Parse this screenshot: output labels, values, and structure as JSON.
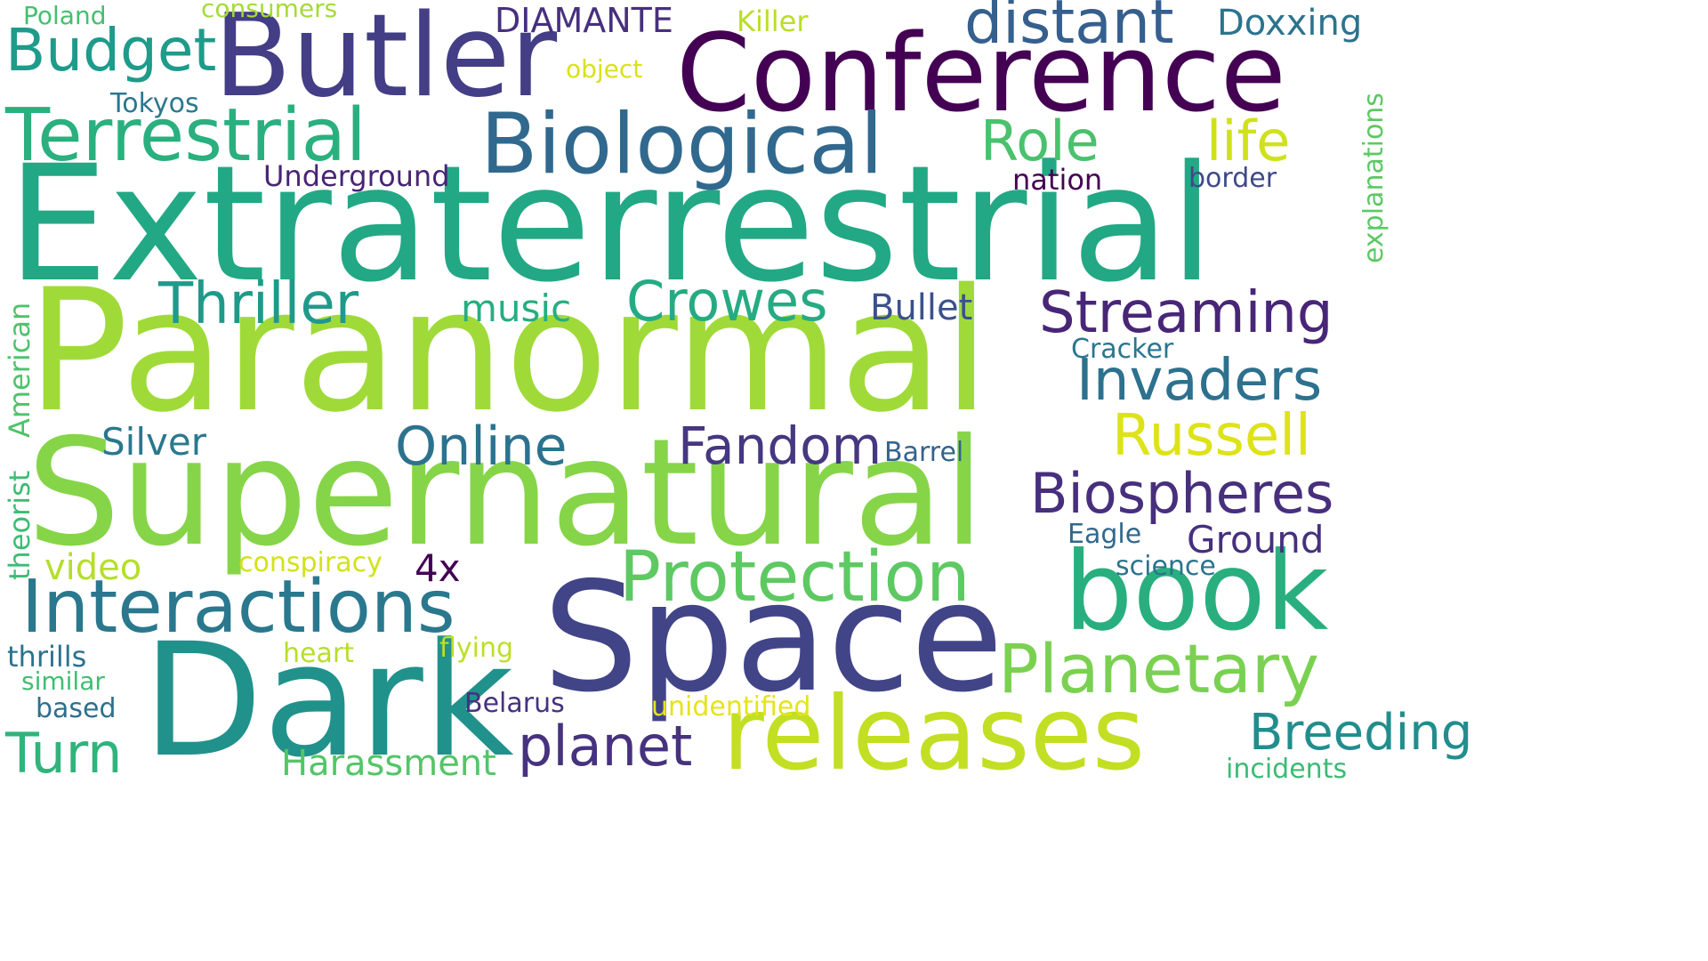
{
  "words": [
    {
      "text": "Extraterrestrial",
      "color": "#22a884"
    },
    {
      "text": "Paranormal",
      "color": "#a0da39"
    },
    {
      "text": "Supernatural",
      "color": "#86d549"
    },
    {
      "text": "Space",
      "color": "#414487"
    },
    {
      "text": "Dark",
      "color": "#21918c"
    },
    {
      "text": "Conference",
      "color": "#440154"
    },
    {
      "text": "Butler",
      "color": "#433e85"
    },
    {
      "text": "releases",
      "color": "#c2df23"
    },
    {
      "text": "book",
      "color": "#29af7f"
    },
    {
      "text": "Biological",
      "color": "#31688e"
    },
    {
      "text": "Terrestrial",
      "color": "#2ab07f"
    },
    {
      "text": "Interactions",
      "color": "#2a788e"
    },
    {
      "text": "Protection",
      "color": "#5ec962"
    },
    {
      "text": "Planetary",
      "color": "#7ad151"
    },
    {
      "text": "distant",
      "color": "#355f8d"
    },
    {
      "text": "Budget",
      "color": "#1e9b8a"
    },
    {
      "text": "Streaming",
      "color": "#482677"
    },
    {
      "text": "Invaders",
      "color": "#2d718e"
    },
    {
      "text": "Biospheres",
      "color": "#472f7d"
    },
    {
      "text": "Russell",
      "color": "#dde318"
    },
    {
      "text": "Thriller",
      "color": "#1f9a8a"
    },
    {
      "text": "Crowes",
      "color": "#25ab82"
    },
    {
      "text": "Online",
      "color": "#2c728e"
    },
    {
      "text": "Fandom",
      "color": "#453781"
    },
    {
      "text": "planet",
      "color": "#46327e"
    },
    {
      "text": "Turn",
      "color": "#2fb47c"
    },
    {
      "text": "Harassment",
      "color": "#54c568"
    },
    {
      "text": "Role",
      "color": "#4ac16d"
    },
    {
      "text": "life",
      "color": "#d0e11c"
    },
    {
      "text": "Breeding",
      "color": "#228d8d"
    },
    {
      "text": "Silver",
      "color": "#2a788e"
    },
    {
      "text": "music",
      "color": "#26ad81"
    },
    {
      "text": "Bullet",
      "color": "#3b518b"
    },
    {
      "text": "video",
      "color": "#b5de2b"
    },
    {
      "text": "4x",
      "color": "#440154"
    },
    {
      "text": "Ground",
      "color": "#46307e"
    },
    {
      "text": "DIAMANTE",
      "color": "#46307e"
    },
    {
      "text": "Doxxing",
      "color": "#2c738e"
    },
    {
      "text": "Underground",
      "color": "#482475"
    },
    {
      "text": "nation",
      "color": "#440154"
    },
    {
      "text": "border",
      "color": "#3e4989"
    },
    {
      "text": "Cracker",
      "color": "#2a768e"
    },
    {
      "text": "Barrel",
      "color": "#33638d"
    },
    {
      "text": "Eagle",
      "color": "#31688e"
    },
    {
      "text": "science",
      "color": "#2c738e"
    },
    {
      "text": "Belarus",
      "color": "#46327e"
    },
    {
      "text": "unidentified",
      "color": "#e5e419"
    },
    {
      "text": "incidents",
      "color": "#3bbb75"
    },
    {
      "text": "conspiracy",
      "color": "#d2e21b"
    },
    {
      "text": "heart",
      "color": "#b8de29"
    },
    {
      "text": "flying",
      "color": "#bddf26"
    },
    {
      "text": "thrills",
      "color": "#2c728e"
    },
    {
      "text": "similar",
      "color": "#40bd72"
    },
    {
      "text": "based",
      "color": "#2d708e"
    },
    {
      "text": "Tokyos",
      "color": "#2a788e"
    },
    {
      "text": "Poland",
      "color": "#44bf70"
    },
    {
      "text": "consumers",
      "color": "#a5db36"
    },
    {
      "text": "Killer",
      "color": "#bade28"
    },
    {
      "text": "object",
      "color": "#d8e219"
    },
    {
      "text": "explanations",
      "color": "#5cc863"
    },
    {
      "text": "American",
      "color": "#4ec36b"
    },
    {
      "text": "theorist",
      "color": "#3dbc74"
    }
  ]
}
